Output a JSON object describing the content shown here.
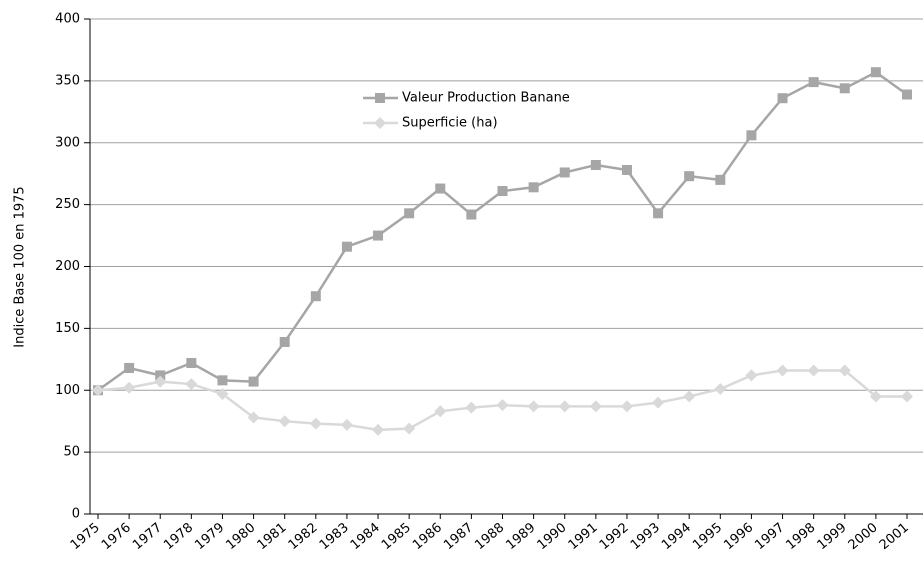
{
  "chart_data": {
    "type": "line",
    "y_label": "Indice Base 100 en 1975",
    "categories": [
      "1975",
      "1976",
      "1977",
      "1978",
      "1979",
      "1980",
      "1981",
      "1982",
      "1983",
      "1984",
      "1985",
      "1986",
      "1987",
      "1988",
      "1989",
      "1990",
      "1991",
      "1992",
      "1993",
      "1994",
      "1995",
      "1996",
      "1997",
      "1998",
      "1999",
      "2000",
      "2001"
    ],
    "series": [
      {
        "name": "Valeur Production Banane",
        "color": "#a6a6a6",
        "marker": "square",
        "values": [
          100,
          118,
          112,
          122,
          108,
          107,
          139,
          176,
          216,
          225,
          243,
          263,
          242,
          261,
          264,
          276,
          282,
          278,
          243,
          273,
          270,
          306,
          336,
          349,
          344,
          357,
          339
        ]
      },
      {
        "name": "Superficie (ha)",
        "color": "#d9d9d9",
        "marker": "diamond",
        "values": [
          100,
          102,
          107,
          105,
          97,
          78,
          75,
          73,
          72,
          68,
          69,
          83,
          86,
          88,
          87,
          87,
          87,
          87,
          90,
          95,
          101,
          112,
          116,
          116,
          116,
          95,
          95
        ]
      }
    ],
    "ylim": [
      0,
      400
    ],
    "yticks": [
      0,
      50,
      100,
      150,
      200,
      250,
      300,
      350,
      400
    ],
    "grid": true
  }
}
